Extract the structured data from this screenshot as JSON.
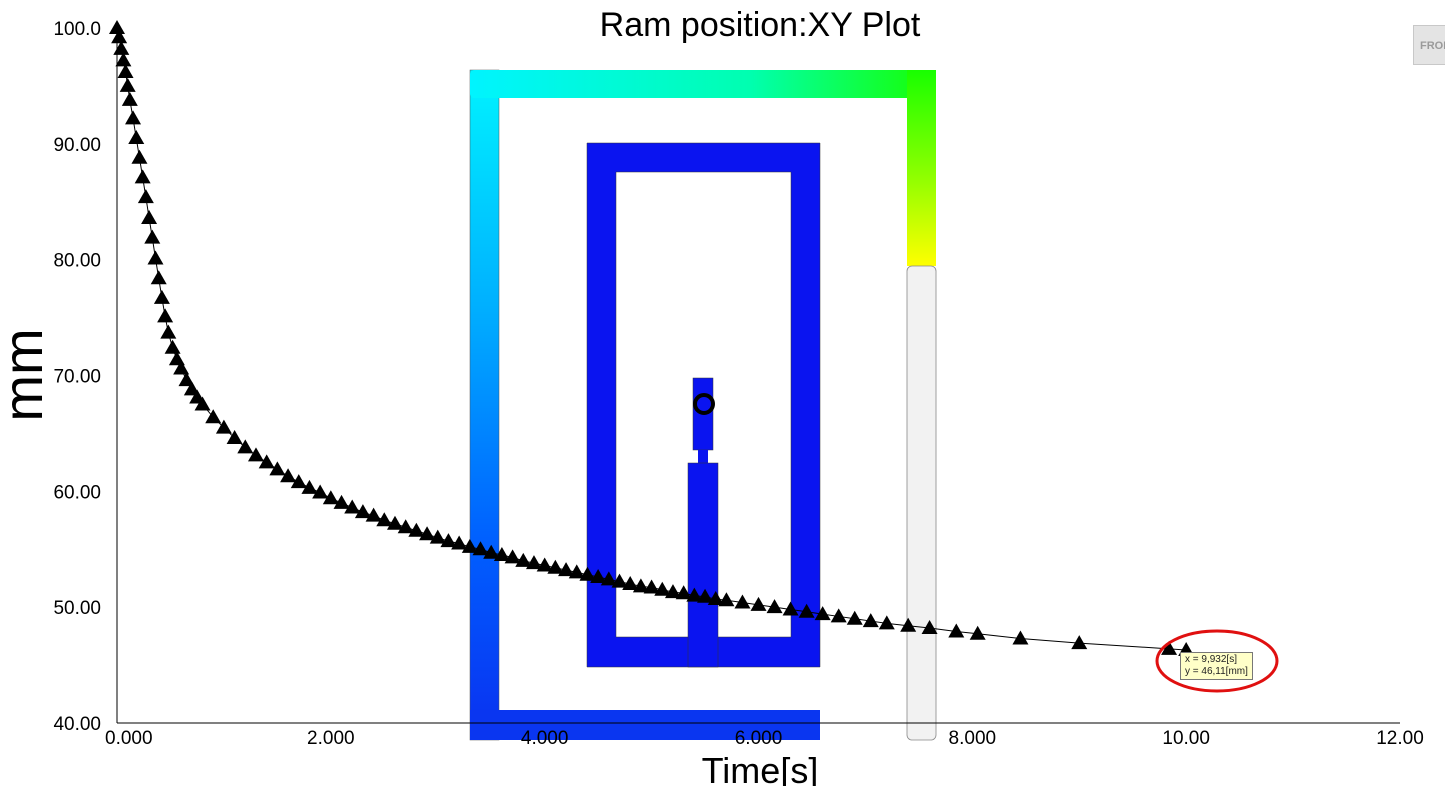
{
  "view": {
    "front_button_label": "FRONT"
  },
  "model": {
    "colors": {
      "cyan": "#00f4ff",
      "blue": "#0a14f0",
      "green": "#18ff00",
      "yellow": "#ffff00",
      "unfilled": "#f2f2f2"
    },
    "fill_level_label": ""
  },
  "tooltip": {
    "x_text": "x = 9,932[s]",
    "y_text": "y = 46,11[mm]"
  },
  "chart_data": {
    "type": "line",
    "title": "Ram position:XY Plot",
    "xlabel": "Time[s]",
    "ylabel": "mm",
    "xlim": [
      0,
      12
    ],
    "ylim": [
      40,
      100
    ],
    "xticks": [
      "0.000",
      "2.000",
      "4.000",
      "6.000",
      "8.000",
      "10.00",
      "12.00"
    ],
    "yticks": [
      "40.00",
      "50.00",
      "60.00",
      "70.00",
      "80.00",
      "90.00",
      "100.0"
    ],
    "grid": false,
    "marker": "triangle",
    "x": [
      0,
      0.02,
      0.04,
      0.06,
      0.08,
      0.1,
      0.12,
      0.15,
      0.18,
      0.21,
      0.24,
      0.27,
      0.3,
      0.33,
      0.36,
      0.39,
      0.42,
      0.45,
      0.48,
      0.52,
      0.56,
      0.6,
      0.65,
      0.7,
      0.75,
      0.8,
      0.9,
      1.0,
      1.1,
      1.2,
      1.3,
      1.4,
      1.5,
      1.6,
      1.7,
      1.8,
      1.9,
      2.0,
      2.1,
      2.2,
      2.3,
      2.4,
      2.5,
      2.6,
      2.7,
      2.8,
      2.9,
      3.0,
      3.1,
      3.2,
      3.3,
      3.4,
      3.5,
      3.6,
      3.7,
      3.8,
      3.9,
      4.0,
      4.1,
      4.2,
      4.3,
      4.4,
      4.5,
      4.6,
      4.7,
      4.8,
      4.9,
      5.0,
      5.1,
      5.2,
      5.3,
      5.4,
      5.5,
      5.6,
      5.7,
      5.85,
      6.0,
      6.15,
      6.3,
      6.45,
      6.6,
      6.75,
      6.9,
      7.05,
      7.2,
      7.4,
      7.6,
      7.85,
      8.05,
      8.45,
      9.0,
      9.84,
      10.0
    ],
    "y": [
      100,
      99.2,
      98.2,
      97.2,
      96.2,
      95,
      93.8,
      92.2,
      90.5,
      88.8,
      87.1,
      85.4,
      83.6,
      81.9,
      80.1,
      78.4,
      76.7,
      75.1,
      73.7,
      72.4,
      71.4,
      70.6,
      69.6,
      68.8,
      68.1,
      67.5,
      66.4,
      65.5,
      64.6,
      63.8,
      63.1,
      62.5,
      61.9,
      61.3,
      60.8,
      60.3,
      59.9,
      59.4,
      59.0,
      58.6,
      58.2,
      57.9,
      57.5,
      57.2,
      56.9,
      56.6,
      56.3,
      56.0,
      55.7,
      55.5,
      55.2,
      55.0,
      54.7,
      54.5,
      54.3,
      54.0,
      53.8,
      53.6,
      53.4,
      53.2,
      53.0,
      52.8,
      52.6,
      52.4,
      52.2,
      52.0,
      51.8,
      51.7,
      51.5,
      51.3,
      51.2,
      51.0,
      50.9,
      50.7,
      50.6,
      50.4,
      50.2,
      50.0,
      49.8,
      49.6,
      49.4,
      49.2,
      49.0,
      48.8,
      48.6,
      48.4,
      48.2,
      47.9,
      47.7,
      47.3,
      46.9,
      46.4,
      46.3
    ]
  }
}
